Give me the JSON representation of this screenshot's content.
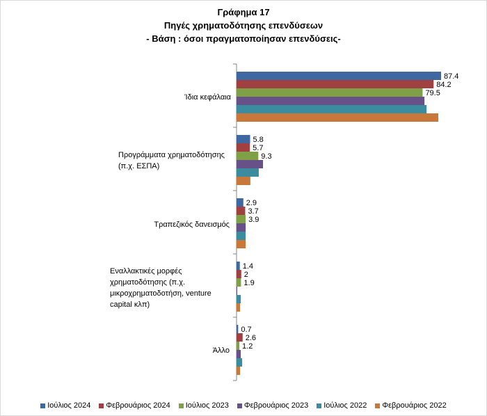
{
  "chart_data": {
    "type": "bar",
    "orientation": "horizontal",
    "title": [
      "Γράφημα 17",
      "Πηγές χρηματοδότησης επενδύσεων",
      "- Βάση : όσοι πραγματοποίησαν επενδύσεις-"
    ],
    "categories": [
      "Ίδια κεφάλαια",
      "Προγράμματα χρηματοδότησης (π.χ. ΕΣΠΑ)",
      "Τραπεζικός δανεισμός",
      "Εναλλακτικές μορφές χρηματοδότησης (π.χ. μικροχρηματοδοτήση, venture capital κλπ)",
      "Άλλο"
    ],
    "series": [
      {
        "name": "Ιούλιος 2024",
        "color": "#4068a0",
        "values": [
          87.4,
          5.8,
          2.9,
          1.4,
          0.7
        ],
        "labels_shown": true
      },
      {
        "name": "Φεβρουάριος 2024",
        "color": "#a04040",
        "values": [
          84.2,
          5.7,
          3.7,
          2,
          2.6
        ],
        "labels_shown": true
      },
      {
        "name": "Ιούλιος 2023",
        "color": "#80a048",
        "values": [
          79.5,
          9.3,
          3.9,
          1.9,
          1.2
        ],
        "labels_shown": true
      },
      {
        "name": "Φεβρουάριος 2023",
        "color": "#685088",
        "values": [
          80.3,
          11.3,
          3.9,
          0.3,
          1.8
        ],
        "labels_shown": false
      },
      {
        "name": "Ιούλιος 2022",
        "color": "#3c8ca0",
        "values": [
          81.2,
          9.5,
          3.9,
          1.8,
          2.4
        ],
        "labels_shown": false
      },
      {
        "name": "Φεβρουάριος 2022",
        "color": "#c87838",
        "values": [
          86.2,
          5.9,
          3.9,
          1.5,
          1.5
        ],
        "labels_shown": false
      }
    ],
    "xlim": [
      0,
      90
    ],
    "grid": false,
    "legend": "bottom"
  }
}
